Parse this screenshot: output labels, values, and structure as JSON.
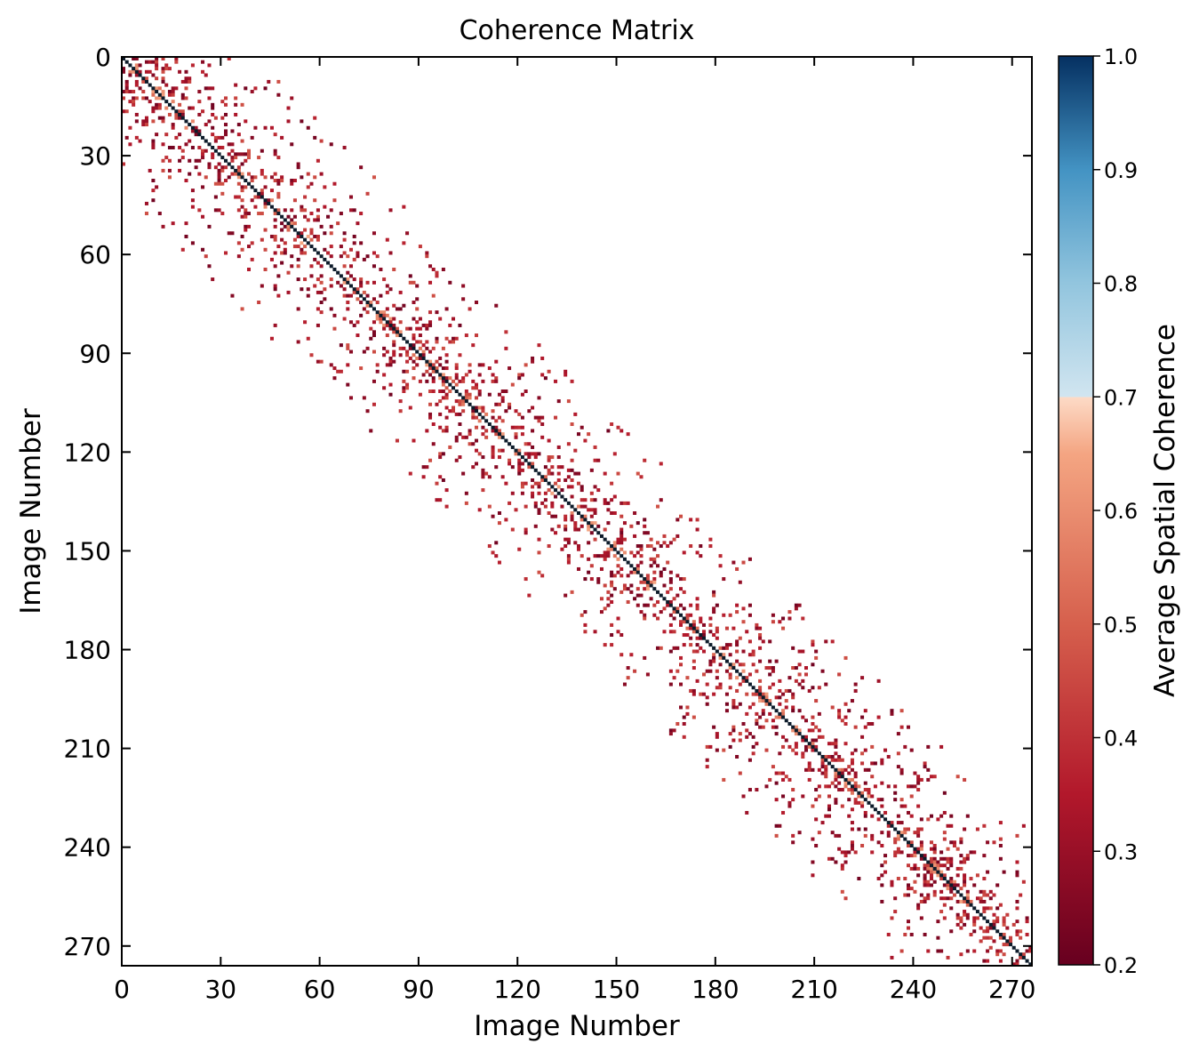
{
  "chart_data": {
    "type": "heatmap",
    "title": "Coherence Matrix",
    "xlabel": "Image Number",
    "ylabel": "Image Number",
    "matrix_size": 276,
    "xlim": [
      0,
      276
    ],
    "ylim": [
      276,
      0
    ],
    "x_ticks": [
      0,
      30,
      60,
      90,
      120,
      150,
      180,
      210,
      240,
      270
    ],
    "y_ticks": [
      0,
      30,
      60,
      90,
      120,
      150,
      180,
      210,
      240,
      270
    ],
    "x_tick_labels": [
      "0",
      "30",
      "60",
      "90",
      "120",
      "150",
      "180",
      "210",
      "240",
      "270"
    ],
    "y_tick_labels": [
      "0",
      "30",
      "60",
      "90",
      "120",
      "150",
      "180",
      "210",
      "240",
      "270"
    ],
    "grid": false,
    "diagonal_value": 1.0,
    "colorbar": {
      "label": "Average Spatial Coherence",
      "range": [
        0.2,
        1.0
      ],
      "ticks": [
        0.2,
        0.3,
        0.4,
        0.5,
        0.6,
        0.7,
        0.8,
        0.9,
        1.0
      ],
      "tick_labels": [
        "0.2",
        "0.3",
        "0.4",
        "0.5",
        "0.6",
        "0.7",
        "0.8",
        "0.9",
        "1.0"
      ],
      "break_at": 0.7,
      "colors": {
        "low": "#67001f",
        "mid_low": "#b2182b",
        "mid": "#d6604d",
        "mid_high": "#f4a582",
        "break_low": "#fddbc7",
        "break_high": "#d1e5f0",
        "high_low": "#92c5de",
        "high_mid": "#4393c3",
        "high": "#053061"
      }
    },
    "pattern_description": "Sparse symmetric-band coherence pairs (values 0.2-0.7) clustered within roughly 35 images of the diagonal; main diagonal equals 1.0.",
    "band": {
      "density_near": 0.32,
      "decay_scale": 12,
      "max_offset": 40,
      "seed": 20240517
    }
  }
}
